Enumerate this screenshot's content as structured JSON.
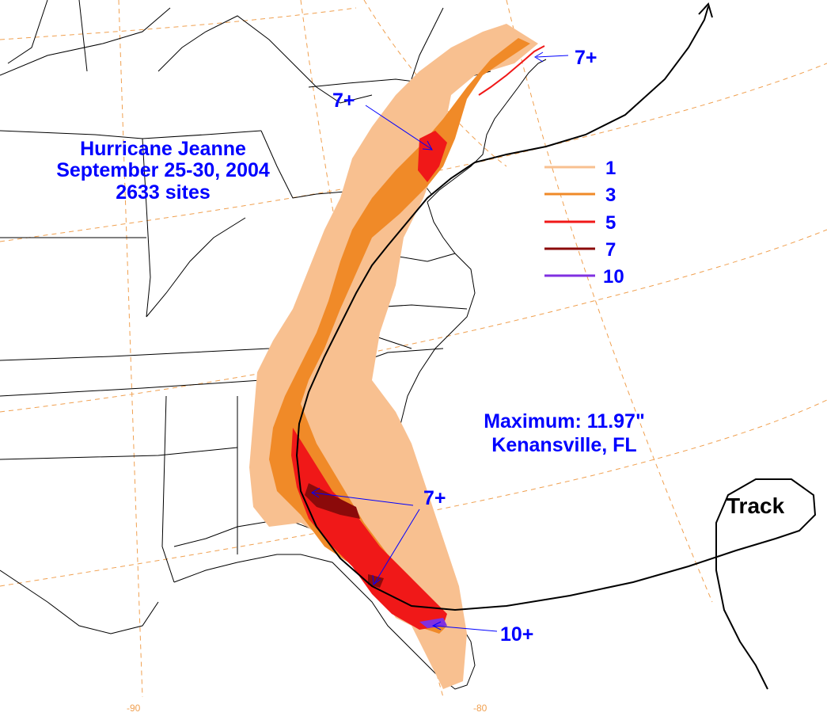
{
  "title": {
    "line1": "Hurricane Jeanne",
    "line2": "September 25-30, 2004",
    "line3": "2633 sites"
  },
  "maximum": {
    "line1": "Maximum: 11.97\"",
    "line2": "Kenansville, FL"
  },
  "legend": {
    "items": [
      {
        "label": "1",
        "color": "#f8c090"
      },
      {
        "label": "3",
        "color": "#f08a28"
      },
      {
        "label": "5",
        "color": "#f01818"
      },
      {
        "label": "7",
        "color": "#8b0a0a"
      },
      {
        "label": "10",
        "color": "#8030e0"
      }
    ]
  },
  "annotations": {
    "maine": "7+",
    "nyc": "7+",
    "florida": "7+",
    "kenansville": "10+"
  },
  "track_label": "Track",
  "longitude_labels": [
    "-90",
    "-80"
  ],
  "colors": {
    "text": "#0000ff",
    "grid": "#f0a050",
    "borders": "#000000",
    "track": "#000000"
  }
}
